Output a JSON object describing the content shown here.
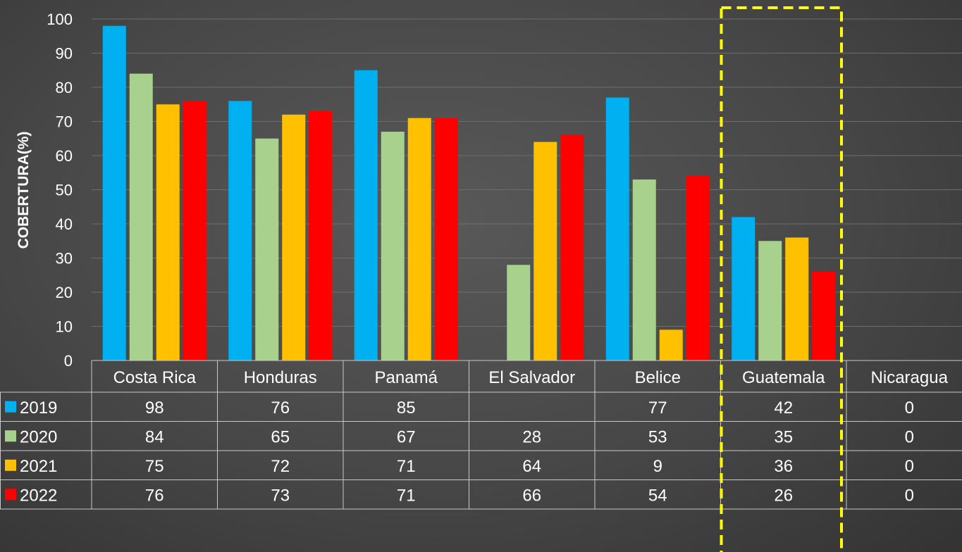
{
  "chart_data": {
    "type": "bar",
    "title": "",
    "xlabel": "",
    "ylabel": "COBERTURA(%)",
    "ylim": [
      0,
      100
    ],
    "yticks": [
      0,
      10,
      20,
      30,
      40,
      50,
      60,
      70,
      80,
      90,
      100
    ],
    "grid": true,
    "legend_placement": "table-left",
    "data_table": true,
    "categories": [
      "Costa Rica",
      "Honduras",
      "Panamá",
      "El Salvador",
      "Belice",
      "Guatemala",
      "Nicaragua"
    ],
    "series": [
      {
        "name": "2019",
        "color": "#00b0f0",
        "values": [
          98,
          76,
          85,
          null,
          77,
          42,
          0
        ],
        "labels": [
          "98",
          "76",
          "85",
          "",
          "77",
          "42",
          "0"
        ]
      },
      {
        "name": "2020",
        "color": "#a9d18e",
        "values": [
          84,
          65,
          67,
          28,
          53,
          35,
          0
        ],
        "labels": [
          "84",
          "65",
          "67",
          "28",
          "53",
          "35",
          "0"
        ]
      },
      {
        "name": "2021",
        "color": "#ffc000",
        "values": [
          75,
          72,
          71,
          64,
          9,
          36,
          0
        ],
        "labels": [
          "75",
          "72",
          "71",
          "64",
          "9",
          "36",
          "0"
        ]
      },
      {
        "name": "2022",
        "color": "#ff0000",
        "values": [
          76,
          73,
          71,
          66,
          54,
          26,
          0
        ],
        "labels": [
          "76",
          "73",
          "71",
          "66",
          "54",
          "26",
          "0"
        ]
      }
    ],
    "highlight": {
      "category": "Guatemala",
      "style": "dashed",
      "color": "#ffff00"
    }
  }
}
